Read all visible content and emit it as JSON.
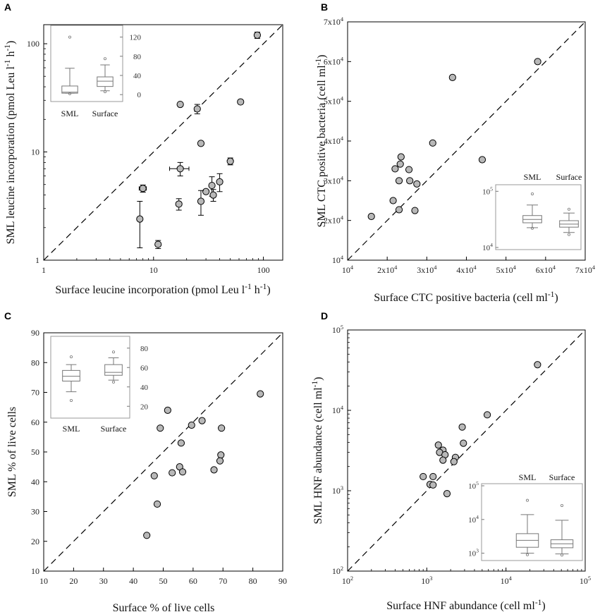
{
  "figure": {
    "panels": [
      "A",
      "B",
      "C",
      "D"
    ]
  },
  "chart_data": [
    {
      "panel": "A",
      "type": "scatter",
      "xscale": "log",
      "yscale": "log",
      "xlim": [
        1,
        150
      ],
      "ylim": [
        1,
        150
      ],
      "xlabel": "Surface leucine incorporation (pmol Leu l",
      "xlabel_sup1": "-1",
      "xlabel_mid": " h",
      "xlabel_sup2": "-1",
      "xlabel_end": ")",
      "ylabel": "SML leucine incorporation (pmol Leu l",
      "ylabel_sup1": "-1",
      "ylabel_mid": " h",
      "ylabel_sup2": "-1",
      "ylabel_end": ")",
      "xticks": [
        {
          "v": 1,
          "t": "1"
        },
        {
          "v": 10,
          "t": "10"
        },
        {
          "v": 100,
          "t": "100"
        }
      ],
      "yticks": [
        {
          "v": 1,
          "t": "1"
        },
        {
          "v": 10,
          "t": "10"
        },
        {
          "v": 100,
          "t": "100"
        }
      ],
      "points": [
        {
          "x": 88,
          "y": 120,
          "xe": 0,
          "ye": 8
        },
        {
          "x": 62,
          "y": 29,
          "xe": 3,
          "ye": 0
        },
        {
          "x": 17.5,
          "y": 27.5,
          "xe": 0,
          "ye": 0
        },
        {
          "x": 25,
          "y": 25,
          "xe": 0,
          "ye": 2.5
        },
        {
          "x": 27,
          "y": 12,
          "xe": 0,
          "ye": 0
        },
        {
          "x": 50,
          "y": 8.2,
          "xe": 0,
          "ye": 0.6
        },
        {
          "x": 17.5,
          "y": 7,
          "xe": 3.5,
          "ye": 1
        },
        {
          "x": 8,
          "y": 4.6,
          "xe": 0.6,
          "ye": 0.35
        },
        {
          "x": 40,
          "y": 5.3,
          "xe": 0,
          "ye": 1
        },
        {
          "x": 34,
          "y": 4.9,
          "xe": 0,
          "ye": 1
        },
        {
          "x": 30,
          "y": 4.3,
          "xe": 1.5,
          "ye": 0
        },
        {
          "x": 35,
          "y": 4,
          "xe": 0,
          "ye": 0.5
        },
        {
          "x": 17,
          "y": 3.3,
          "xe": 0,
          "ye": 0.4
        },
        {
          "x": 27,
          "y": 3.5,
          "xe": 0,
          "ye": 0.9
        },
        {
          "x": 7.5,
          "y": 2.4,
          "xe": 0,
          "ye": 1.1
        },
        {
          "x": 11,
          "y": 1.4,
          "xe": 0,
          "ye": 0.12
        }
      ],
      "inset": {
        "categories": [
          "SML",
          "Surface"
        ],
        "yscale": "linear",
        "ylim": [
          -10,
          140
        ],
        "yticks": [
          {
            "v": 0,
            "t": "0"
          },
          {
            "v": 40,
            "t": "40"
          },
          {
            "v": 80,
            "t": "80"
          },
          {
            "v": 120,
            "t": "120"
          }
        ],
        "tick_side": "right",
        "boxes": [
          {
            "wlo": 3,
            "q1": 3,
            "med": 5,
            "q3": 18,
            "whi": 55,
            "outliers": [
              120,
              2
            ]
          },
          {
            "wlo": 8,
            "q1": 17,
            "med": 28,
            "q3": 37,
            "whi": 62,
            "outliers": [
              75,
              6
            ]
          }
        ]
      }
    },
    {
      "panel": "B",
      "type": "scatter",
      "xscale": "linear",
      "yscale": "linear",
      "xlim": [
        10000,
        70000
      ],
      "ylim": [
        10000,
        70000
      ],
      "xlabel": "Surface CTC positive bacteria (cell ml",
      "xlabel_sup1": "-1",
      "xlabel_end": ")",
      "ylabel": "SML CTC positive bacteria (cell ml",
      "ylabel_sup1": "-1",
      "ylabel_end": ")",
      "xticks": [
        {
          "v": 10000,
          "t": "10",
          "e": "4"
        },
        {
          "v": 20000,
          "t": "2x10",
          "e": "4"
        },
        {
          "v": 30000,
          "t": "3x10",
          "e": "4"
        },
        {
          "v": 40000,
          "t": "4x10",
          "e": "4"
        },
        {
          "v": 50000,
          "t": "5x10",
          "e": "4"
        },
        {
          "v": 60000,
          "t": "6x10",
          "e": "4"
        },
        {
          "v": 70000,
          "t": "7x10",
          "e": "4"
        }
      ],
      "yticks": [
        {
          "v": 10000,
          "t": "10",
          "e": "4"
        },
        {
          "v": 20000,
          "t": "2x10",
          "e": "4"
        },
        {
          "v": 30000,
          "t": "3x10",
          "e": "4"
        },
        {
          "v": 40000,
          "t": "4x10",
          "e": "4"
        },
        {
          "v": 50000,
          "t": "5x10",
          "e": "4"
        },
        {
          "v": 60000,
          "t": "6x10",
          "e": "4"
        },
        {
          "v": 70000,
          "t": "7x10",
          "e": "4"
        }
      ],
      "points": [
        {
          "x": 58000,
          "y": 60000
        },
        {
          "x": 36500,
          "y": 56000
        },
        {
          "x": 31500,
          "y": 39500
        },
        {
          "x": 44000,
          "y": 35300
        },
        {
          "x": 23500,
          "y": 36000
        },
        {
          "x": 23300,
          "y": 34200
        },
        {
          "x": 22000,
          "y": 33000
        },
        {
          "x": 25500,
          "y": 32800
        },
        {
          "x": 23000,
          "y": 30000
        },
        {
          "x": 25700,
          "y": 30000
        },
        {
          "x": 27500,
          "y": 29200
        },
        {
          "x": 21500,
          "y": 25000
        },
        {
          "x": 23000,
          "y": 22700
        },
        {
          "x": 27000,
          "y": 22500
        },
        {
          "x": 16000,
          "y": 21000
        }
      ],
      "inset": {
        "categories": [
          "SML",
          "Surface"
        ],
        "yscale": "log",
        "ylim": [
          10000,
          120000
        ],
        "yticks": [
          {
            "v": 10000,
            "t": "10",
            "e": "4"
          },
          {
            "v": 100000,
            "t": "10",
            "e": "5"
          }
        ],
        "tick_side": "left",
        "boxes": [
          {
            "wlo": 22500,
            "q1": 27500,
            "med": 31500,
            "q3": 37000,
            "whi": 57000,
            "outliers": [
              90000,
              22000
            ]
          },
          {
            "wlo": 18500,
            "q1": 23000,
            "med": 26000,
            "q3": 30000,
            "whi": 41000,
            "outliers": [
              48000,
              17000
            ]
          }
        ]
      }
    },
    {
      "panel": "C",
      "type": "scatter",
      "xscale": "linear",
      "yscale": "linear",
      "xlim": [
        10,
        90
      ],
      "ylim": [
        10,
        90
      ],
      "xlabel": "Surface % of live cells",
      "ylabel": "SML % of live cells",
      "xticks": [
        {
          "v": 10,
          "t": "10"
        },
        {
          "v": 20,
          "t": "20"
        },
        {
          "v": 30,
          "t": "30"
        },
        {
          "v": 40,
          "t": "40"
        },
        {
          "v": 50,
          "t": "50"
        },
        {
          "v": 60,
          "t": "60"
        },
        {
          "v": 70,
          "t": "70"
        },
        {
          "v": 80,
          "t": "80"
        },
        {
          "v": 90,
          "t": "90"
        }
      ],
      "yticks": [
        {
          "v": 10,
          "t": "10"
        },
        {
          "v": 20,
          "t": "20"
        },
        {
          "v": 30,
          "t": "30"
        },
        {
          "v": 40,
          "t": "40"
        },
        {
          "v": 50,
          "t": "50"
        },
        {
          "v": 60,
          "t": "60"
        },
        {
          "v": 70,
          "t": "70"
        },
        {
          "v": 80,
          "t": "80"
        },
        {
          "v": 90,
          "t": "90"
        }
      ],
      "points": [
        {
          "x": 82.5,
          "y": 69.5
        },
        {
          "x": 51.5,
          "y": 64
        },
        {
          "x": 63,
          "y": 60.5
        },
        {
          "x": 59.5,
          "y": 59
        },
        {
          "x": 49,
          "y": 58
        },
        {
          "x": 69.5,
          "y": 58
        },
        {
          "x": 56,
          "y": 53
        },
        {
          "x": 69.3,
          "y": 49
        },
        {
          "x": 69,
          "y": 47
        },
        {
          "x": 55.5,
          "y": 45
        },
        {
          "x": 67,
          "y": 44
        },
        {
          "x": 53,
          "y": 43
        },
        {
          "x": 56.5,
          "y": 43.3
        },
        {
          "x": 47,
          "y": 42
        },
        {
          "x": 48,
          "y": 32.5
        },
        {
          "x": 44.5,
          "y": 22
        }
      ],
      "inset": {
        "categories": [
          "SML",
          "Surface"
        ],
        "yscale": "linear",
        "ylim": [
          10,
          90
        ],
        "yticks": [
          {
            "v": 20,
            "t": "20"
          },
          {
            "v": 40,
            "t": "40"
          },
          {
            "v": 60,
            "t": "60"
          },
          {
            "v": 80,
            "t": "80"
          }
        ],
        "tick_side": "right",
        "boxes": [
          {
            "wlo": 35,
            "q1": 46,
            "med": 51,
            "q3": 57,
            "whi": 63,
            "outliers": [
              71,
              26
            ]
          },
          {
            "wlo": 47,
            "q1": 52,
            "med": 55,
            "q3": 63,
            "whi": 70,
            "outliers": [
              76,
              45
            ]
          }
        ]
      }
    },
    {
      "panel": "D",
      "type": "scatter",
      "xscale": "log",
      "yscale": "log",
      "xlim": [
        100,
        100000
      ],
      "ylim": [
        100,
        100000
      ],
      "xlabel": "Surface HNF abundance (cell ml",
      "xlabel_sup1": "-1",
      "xlabel_end": ")",
      "ylabel": "SML HNF abundance  (cell ml",
      "ylabel_sup1": "-1",
      "ylabel_end": ")",
      "xticks": [
        {
          "v": 100,
          "t": "10",
          "e": "2"
        },
        {
          "v": 1000,
          "t": "10",
          "e": "3"
        },
        {
          "v": 10000,
          "t": "10",
          "e": "4"
        },
        {
          "v": 100000,
          "t": "10",
          "e": "5"
        }
      ],
      "yticks": [
        {
          "v": 100,
          "t": "10",
          "e": "2"
        },
        {
          "v": 1000,
          "t": "10",
          "e": "3"
        },
        {
          "v": 10000,
          "t": "10",
          "e": "4"
        },
        {
          "v": 100000,
          "t": "10",
          "e": "5"
        }
      ],
      "points": [
        {
          "x": 25000,
          "y": 37000
        },
        {
          "x": 5800,
          "y": 8800
        },
        {
          "x": 2800,
          "y": 6200
        },
        {
          "x": 2900,
          "y": 3900
        },
        {
          "x": 1400,
          "y": 3700
        },
        {
          "x": 1600,
          "y": 3200
        },
        {
          "x": 1450,
          "y": 3000
        },
        {
          "x": 1700,
          "y": 2800
        },
        {
          "x": 2300,
          "y": 2600
        },
        {
          "x": 1600,
          "y": 2400
        },
        {
          "x": 2200,
          "y": 2300
        },
        {
          "x": 900,
          "y": 1500
        },
        {
          "x": 1200,
          "y": 1500
        },
        {
          "x": 1100,
          "y": 1200
        },
        {
          "x": 1200,
          "y": 1180
        },
        {
          "x": 1800,
          "y": 920
        }
      ],
      "inset": {
        "categories": [
          "SML",
          "Surface"
        ],
        "yscale": "log",
        "ylim": [
          700,
          100000
        ],
        "yticks": [
          {
            "v": 1000,
            "t": "10",
            "e": "3"
          },
          {
            "v": 10000,
            "t": "10",
            "e": "4"
          },
          {
            "v": 100000,
            "t": "10",
            "e": "5"
          }
        ],
        "tick_side": "left",
        "boxes": [
          {
            "wlo": 1000,
            "q1": 1500,
            "med": 2400,
            "q3": 3800,
            "whi": 14000,
            "outliers": [
              37000,
              900
            ]
          },
          {
            "wlo": 950,
            "q1": 1450,
            "med": 1900,
            "q3": 2500,
            "whi": 9500,
            "outliers": [
              26000,
              880
            ]
          }
        ]
      }
    }
  ]
}
